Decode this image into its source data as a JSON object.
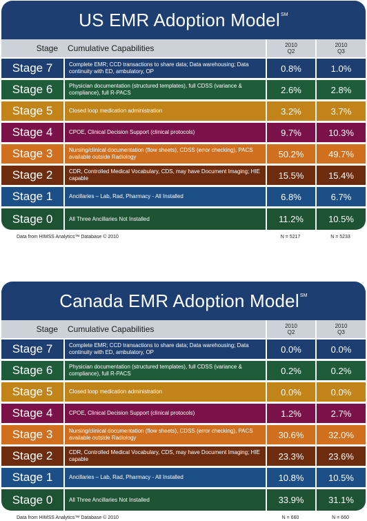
{
  "us": {
    "title": "US EMR Adoption Model",
    "title_mark": "SM",
    "header": {
      "stage": "Stage",
      "capabilities": "Cumulative Capabilities",
      "q2_year": "2010",
      "q2_label": "Q2",
      "q3_year": "2010",
      "q3_label": "Q3"
    },
    "rows": [
      {
        "stage": "Stage 7",
        "capabilities": "Complete EMR; CCD transactions to share data; Data warehousing; Data continuity with ED, ambulatory, OP",
        "q2": "0.8%",
        "q3": "1.0%"
      },
      {
        "stage": "Stage 6",
        "capabilities": "Physician documentation (structured templates), full CDSS (variance & compliance), full R-PACS",
        "q2": "2.6%",
        "q3": "2.8%"
      },
      {
        "stage": "Stage 5",
        "capabilities": "Closed loop medication administration",
        "q2": "3.2%",
        "q3": "3.7%"
      },
      {
        "stage": "Stage 4",
        "capabilities": "CPOE, Clinical Decision Support (clinical protocols)",
        "q2": "9.7%",
        "q3": "10.3%"
      },
      {
        "stage": "Stage 3",
        "capabilities": "Nursing/clinical documentation (flow sheets), CDSS (error checking), PACS available outside Radiology",
        "q2": "50.2%",
        "q3": "49.7%"
      },
      {
        "stage": "Stage 2",
        "capabilities": "CDR, Controlled Medical Vocabulary, CDS, may have Document Imaging; HIE capable",
        "q2": "15.5%",
        "q3": "15.4%"
      },
      {
        "stage": "Stage 1",
        "capabilities": "Ancillaries – Lab, Rad, Pharmacy - All Installed",
        "q2": "6.8%",
        "q3": "6.7%"
      },
      {
        "stage": "Stage 0",
        "capabilities": "All Three Ancillaries Not Installed",
        "q2": "11.2%",
        "q3": "10.5%"
      }
    ],
    "footer": {
      "source": "Data from HIMSS Analytics™ Database © 2010",
      "n_q2": "N = 5217",
      "n_q3": "N = 5233"
    }
  },
  "canada": {
    "title": "Canada EMR Adoption Model",
    "title_mark": "SM",
    "header": {
      "stage": "Stage",
      "capabilities": "Cumulative Capabilities",
      "q2_year": "2010",
      "q2_label": "Q2",
      "q3_year": "2010",
      "q3_label": "Q3"
    },
    "rows": [
      {
        "stage": "Stage 7",
        "capabilities": "Complete EMR; CCD transactions to share data; Data warehousing; Data continuity with ED, ambulatory, OP",
        "q2": "0.0%",
        "q3": "0.0%"
      },
      {
        "stage": "Stage 6",
        "capabilities": "Physician documentation (structured templates), full CDSS (variance & compliance), full R-PACS",
        "q2": "0.2%",
        "q3": "0.2%"
      },
      {
        "stage": "Stage 5",
        "capabilities": "Closed loop medication administration",
        "q2": "0.0%",
        "q3": "0.0%"
      },
      {
        "stage": "Stage 4",
        "capabilities": "CPOE, Clinical Decision Support (clinical protocols)",
        "q2": "1.2%",
        "q3": "2.7%"
      },
      {
        "stage": "Stage 3",
        "capabilities": "Nursing/clinical documentation (flow sheets), CDSS (error checking), PACS available outside Radiology",
        "q2": "30.6%",
        "q3": "32.0%"
      },
      {
        "stage": "Stage 2",
        "capabilities": "CDR, Controlled Medical Vocabulary, CDS, may have Document Imaging; HIE capable",
        "q2": "23.3%",
        "q3": "23.6%"
      },
      {
        "stage": "Stage 1",
        "capabilities": "Ancillaries – Lab, Rad, Pharmacy - All Installed",
        "q2": "10.8%",
        "q3": "10.5%"
      },
      {
        "stage": "Stage 0",
        "capabilities": "All Three Ancillaries Not Installed",
        "q2": "33.9%",
        "q3": "31.1%"
      }
    ],
    "footer": {
      "source": "Data from HIMSS Analytics™ Database © 2010",
      "n_q2": "N = 660",
      "n_q3": "N = 660"
    }
  },
  "colors": {
    "title_bar": "#1c3e70",
    "header_row": "#ccd2d8",
    "stage_7": "#1c3e70",
    "stage_6": "#1e5c3a",
    "stage_5": "#c28319",
    "stage_4": "#7a1249",
    "stage_3": "#d0701e",
    "stage_2": "#6e2c0e",
    "stage_1": "#1c4f86",
    "stage_0": "#1d5233"
  }
}
